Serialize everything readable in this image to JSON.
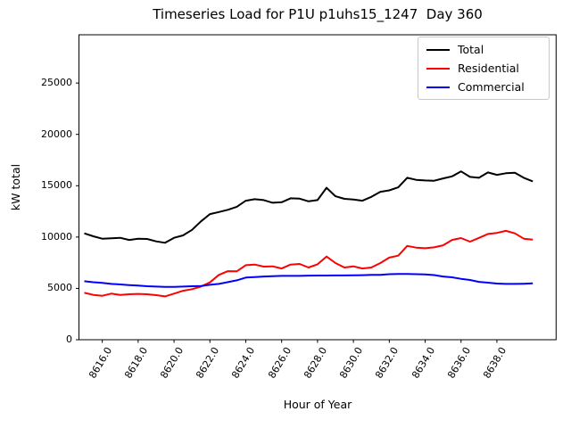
{
  "title": "Timeseries Load for P1U p1uhs15_1247  Day 360",
  "chart_data": {
    "type": "line",
    "title": "Timeseries Load for P1U p1uhs15_1247  Day 360",
    "xlabel": "Hour of Year",
    "ylabel": "kW total",
    "grid": false,
    "legend_position": "upper right",
    "xlim": [
      8614.7,
      8641.3
    ],
    "ylim": [
      0,
      29700
    ],
    "xticks": {
      "values": [
        8616,
        8618,
        8620,
        8622,
        8624,
        8626,
        8628,
        8630,
        8632,
        8634,
        8636,
        8638
      ],
      "labels": [
        "8616.0",
        "8618.0",
        "8620.0",
        "8622.0",
        "8624.0",
        "8626.0",
        "8628.0",
        "8630.0",
        "8632.0",
        "8634.0",
        "8636.0",
        "8638.0"
      ]
    },
    "yticks": {
      "values": [
        0,
        5000,
        10000,
        15000,
        20000,
        25000
      ],
      "labels": [
        "0",
        "5000",
        "10000",
        "15000",
        "20000",
        "25000"
      ]
    },
    "x": [
      8615.0,
      8615.5,
      8616.0,
      8616.5,
      8617.0,
      8617.5,
      8618.0,
      8618.5,
      8619.0,
      8619.5,
      8620.0,
      8620.5,
      8621.0,
      8621.5,
      8622.0,
      8622.5,
      8623.0,
      8623.5,
      8624.0,
      8624.5,
      8625.0,
      8625.5,
      8626.0,
      8626.5,
      8627.0,
      8627.5,
      8628.0,
      8628.5,
      8629.0,
      8629.5,
      8630.0,
      8630.5,
      8631.0,
      8631.5,
      8632.0,
      8632.5,
      8633.0,
      8633.5,
      8634.0,
      8634.5,
      8635.0,
      8635.5,
      8636.0,
      8636.5,
      8637.0,
      8637.5,
      8638.0,
      8638.5,
      8639.0,
      8639.5,
      8640.0
    ],
    "series": [
      {
        "name": "Total",
        "color": "#000000",
        "values": [
          10360,
          10070,
          9840,
          9870,
          9930,
          9720,
          9840,
          9810,
          9580,
          9440,
          9930,
          10160,
          10700,
          11520,
          12240,
          12440,
          12650,
          12950,
          13540,
          13690,
          13600,
          13340,
          13390,
          13770,
          13740,
          13480,
          13600,
          14800,
          13970,
          13720,
          13650,
          13540,
          13910,
          14410,
          14550,
          14840,
          15770,
          15570,
          15510,
          15480,
          15710,
          15910,
          16400,
          15860,
          15770,
          16290,
          16060,
          16210,
          16260,
          15770,
          15420
        ]
      },
      {
        "name": "Residential",
        "color": "#ff0000",
        "values": [
          4570,
          4370,
          4280,
          4490,
          4370,
          4430,
          4460,
          4430,
          4340,
          4220,
          4490,
          4770,
          4920,
          5180,
          5580,
          6310,
          6680,
          6660,
          7260,
          7320,
          7120,
          7150,
          6940,
          7320,
          7380,
          7030,
          7350,
          8100,
          7470,
          7030,
          7150,
          6940,
          7030,
          7470,
          8000,
          8190,
          9140,
          8970,
          8910,
          9000,
          9200,
          9720,
          9900,
          9550,
          9920,
          10300,
          10400,
          10600,
          10360,
          9840,
          9750
        ]
      },
      {
        "name": "Commercial",
        "color": "#0000ff",
        "values": [
          5700,
          5600,
          5530,
          5440,
          5380,
          5320,
          5270,
          5210,
          5180,
          5150,
          5150,
          5180,
          5210,
          5230,
          5350,
          5440,
          5610,
          5780,
          6050,
          6100,
          6160,
          6190,
          6220,
          6220,
          6220,
          6240,
          6250,
          6250,
          6260,
          6260,
          6270,
          6290,
          6310,
          6320,
          6380,
          6400,
          6400,
          6380,
          6360,
          6300,
          6160,
          6080,
          5930,
          5820,
          5640,
          5560,
          5470,
          5440,
          5440,
          5450,
          5490
        ]
      }
    ]
  }
}
